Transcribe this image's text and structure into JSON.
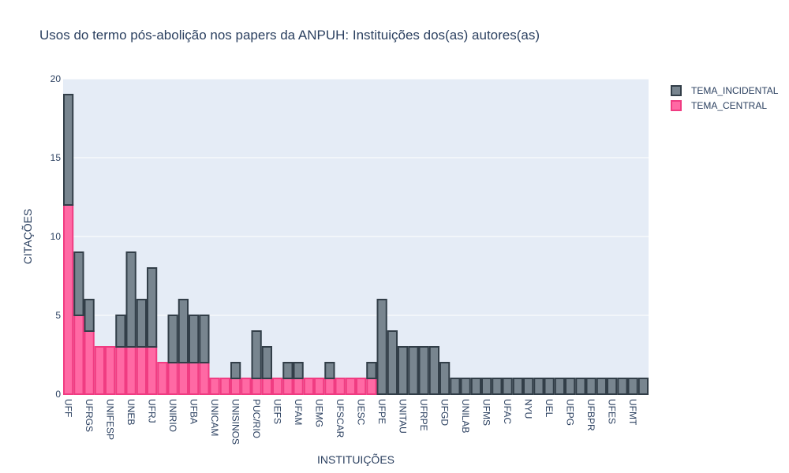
{
  "chart_data": {
    "type": "bar",
    "barmode": "stack",
    "title": "Usos do termo pós-abolição nos papers da ANPUH: Instituições dos(as) autores(as)",
    "xlabel": "INSTITUIÇÕES",
    "ylabel": "CITAÇÕES",
    "ylim": [
      0,
      20
    ],
    "yticks": [
      0,
      5,
      10,
      15,
      20
    ],
    "grid": true,
    "legend_position": "top-right",
    "categories": [
      "UFF",
      "",
      "UFRGS",
      "",
      "UNIFESP",
      "",
      "UNEB",
      "",
      "UFRJ",
      "",
      "UNIRIO",
      "",
      "UFBA",
      "",
      "UNICAM",
      "",
      "UNISINOS",
      "",
      "PUC/RIO",
      "",
      "UEFS",
      "",
      "UFAM",
      "",
      "UEMG",
      "",
      "UFSCAR",
      "",
      "UESC",
      "",
      "UFPE",
      "",
      "UNITAU",
      "",
      "UFRPE",
      "",
      "UFGD",
      "",
      "UNILAB",
      "",
      "UFMS",
      "",
      "UFAC",
      "",
      "NYU",
      "",
      "UEL",
      "",
      "UEPG",
      "",
      "UFBPR",
      "",
      "UFES",
      "",
      "UFMT",
      ""
    ],
    "series": [
      {
        "name": "TEMA_CENTRAL",
        "color": "#ff69a4",
        "edge_color": "#f03c82",
        "values": [
          12,
          5,
          4,
          3,
          3,
          3,
          3,
          3,
          3,
          2,
          2,
          2,
          2,
          2,
          1,
          1,
          1,
          1,
          1,
          1,
          1,
          1,
          1,
          1,
          1,
          1,
          1,
          1,
          1,
          1,
          0,
          0,
          0,
          0,
          0,
          0,
          0,
          0,
          0,
          0,
          0,
          0,
          0,
          0,
          0,
          0,
          0,
          0,
          0,
          0,
          0,
          0,
          0,
          0,
          0,
          0
        ]
      },
      {
        "name": "TEMA_INCIDENTAL",
        "color": "#78858f",
        "edge_color": "#323e48",
        "values": [
          7,
          4,
          2,
          0,
          0,
          2,
          6,
          3,
          5,
          0,
          3,
          4,
          3,
          3,
          0,
          0,
          1,
          0,
          3,
          2,
          0,
          1,
          1,
          0,
          0,
          1,
          0,
          0,
          0,
          1,
          6,
          4,
          3,
          3,
          3,
          3,
          2,
          1,
          1,
          1,
          1,
          1,
          1,
          1,
          1,
          1,
          1,
          1,
          1,
          1,
          1,
          1,
          1,
          1,
          1,
          1
        ]
      }
    ]
  }
}
